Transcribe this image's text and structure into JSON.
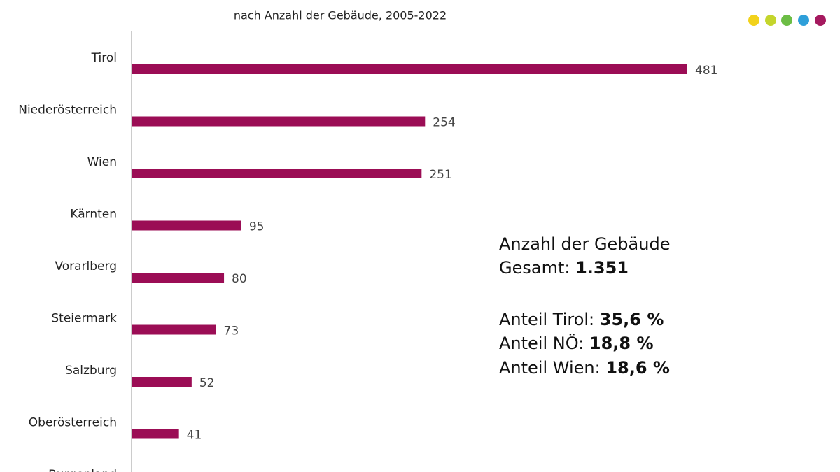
{
  "chart_data": {
    "type": "bar",
    "orientation": "horizontal",
    "subtitle": "nach Anzahl der Gebäude, 2005-2022",
    "categories": [
      "Tirol",
      "Niederösterreich",
      "Wien",
      "Kärnten",
      "Vorarlberg",
      "Steiermark",
      "Salzburg",
      "Oberösterreich",
      "Burgenland"
    ],
    "values": [
      481,
      254,
      251,
      95,
      80,
      73,
      52,
      41,
      null
    ],
    "color": "#9b0d55",
    "annotations": [
      {
        "text": "Anzahl der Gebäude"
      },
      {
        "text": "Gesamt: ",
        "value": "1.351"
      },
      {
        "text": "Anteil Tirol: ",
        "value": "35,6 %"
      },
      {
        "text": "Anteil NÖ: ",
        "value": "18,8 %"
      },
      {
        "text": "Anteil Wien: ",
        "value": "18,6 %"
      }
    ]
  }
}
